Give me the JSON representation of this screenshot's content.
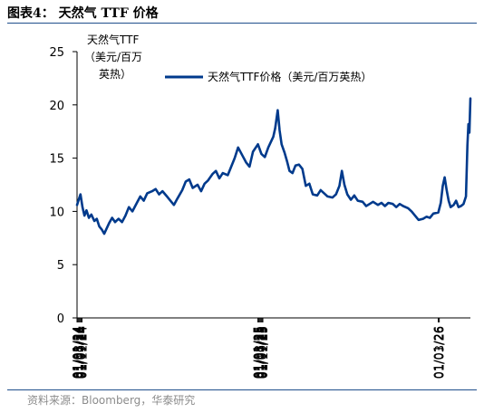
{
  "header": {
    "title": "图表4： 天然气 TTF 价格"
  },
  "footer": {
    "source": "资料来源：Bloomberg，华泰研究"
  },
  "colors": {
    "line": "#003a8c",
    "rule": "#1f4e8c",
    "source": "#8c8c8c"
  },
  "chart_data": {
    "type": "line",
    "title": "",
    "ylabel": "",
    "unit_label": [
      "天然气TTF",
      "（美元/百万",
      "英热）"
    ],
    "xlabel": "",
    "ylim": [
      0,
      25
    ],
    "yticks": [
      0,
      5,
      10,
      15,
      20,
      25
    ],
    "xticks": [
      "01/01/24",
      "01/03/24",
      "01/05/24",
      "01/07/24",
      "01/09/24",
      "01/11/24",
      "01/01/25",
      "01/03/25",
      "01/05/25",
      "01/07/25",
      "01/09/25",
      "01/11/25",
      "01/01/26",
      "01/03/26"
    ],
    "legend_position": "top-right",
    "grid": false,
    "series": [
      {
        "name": "天然气TTF价格（美元/百万英热）",
        "points": [
          [
            "2024-01-01",
            10.6
          ],
          [
            "2024-01-05",
            11.2
          ],
          [
            "2024-01-08",
            11.6
          ],
          [
            "2024-01-12",
            10.4
          ],
          [
            "2024-01-16",
            9.6
          ],
          [
            "2024-01-20",
            10.1
          ],
          [
            "2024-01-25",
            9.4
          ],
          [
            "2024-01-30",
            9.7
          ],
          [
            "2024-02-05",
            9.1
          ],
          [
            "2024-02-10",
            9.3
          ],
          [
            "2024-02-15",
            8.6
          ],
          [
            "2024-02-20",
            8.3
          ],
          [
            "2024-02-25",
            7.9
          ],
          [
            "2024-03-01",
            8.4
          ],
          [
            "2024-03-06",
            8.9
          ],
          [
            "2024-03-12",
            9.4
          ],
          [
            "2024-03-18",
            9.0
          ],
          [
            "2024-03-25",
            9.3
          ],
          [
            "2024-04-01",
            9.0
          ],
          [
            "2024-04-08",
            9.6
          ],
          [
            "2024-04-15",
            10.4
          ],
          [
            "2024-04-22",
            10.0
          ],
          [
            "2024-05-01",
            10.8
          ],
          [
            "2024-05-08",
            11.4
          ],
          [
            "2024-05-15",
            11.0
          ],
          [
            "2024-05-22",
            11.7
          ],
          [
            "2024-06-01",
            11.9
          ],
          [
            "2024-06-08",
            12.1
          ],
          [
            "2024-06-15",
            11.6
          ],
          [
            "2024-06-22",
            11.9
          ],
          [
            "2024-07-01",
            11.4
          ],
          [
            "2024-07-08",
            11.0
          ],
          [
            "2024-07-15",
            10.6
          ],
          [
            "2024-07-22",
            11.2
          ],
          [
            "2024-08-01",
            12.0
          ],
          [
            "2024-08-08",
            12.8
          ],
          [
            "2024-08-15",
            13.0
          ],
          [
            "2024-08-22",
            12.2
          ],
          [
            "2024-09-01",
            12.5
          ],
          [
            "2024-09-08",
            11.9
          ],
          [
            "2024-09-15",
            12.6
          ],
          [
            "2024-09-22",
            12.9
          ],
          [
            "2024-10-01",
            13.5
          ],
          [
            "2024-10-08",
            13.8
          ],
          [
            "2024-10-15",
            13.1
          ],
          [
            "2024-10-22",
            13.6
          ],
          [
            "2024-11-01",
            13.4
          ],
          [
            "2024-11-08",
            14.2
          ],
          [
            "2024-11-15",
            15.0
          ],
          [
            "2024-11-22",
            16.0
          ],
          [
            "2024-12-01",
            15.2
          ],
          [
            "2024-12-08",
            14.6
          ],
          [
            "2024-12-15",
            14.2
          ],
          [
            "2024-12-22",
            15.6
          ],
          [
            "2025-01-01",
            16.3
          ],
          [
            "2025-01-08",
            15.4
          ],
          [
            "2025-01-15",
            15.1
          ],
          [
            "2025-01-22",
            16.0
          ],
          [
            "2025-02-01",
            17.0
          ],
          [
            "2025-02-05",
            17.8
          ],
          [
            "2025-02-10",
            19.5
          ],
          [
            "2025-02-14",
            17.6
          ],
          [
            "2025-02-18",
            16.3
          ],
          [
            "2025-02-24",
            15.5
          ],
          [
            "2025-03-01",
            14.7
          ],
          [
            "2025-03-06",
            13.8
          ],
          [
            "2025-03-12",
            13.6
          ],
          [
            "2025-03-18",
            14.3
          ],
          [
            "2025-03-25",
            14.4
          ],
          [
            "2025-04-01",
            14.0
          ],
          [
            "2025-04-08",
            12.4
          ],
          [
            "2025-04-15",
            12.6
          ],
          [
            "2025-04-22",
            11.6
          ],
          [
            "2025-05-01",
            11.5
          ],
          [
            "2025-05-08",
            12.0
          ],
          [
            "2025-05-15",
            11.7
          ],
          [
            "2025-05-22",
            11.4
          ],
          [
            "2025-06-01",
            11.3
          ],
          [
            "2025-06-08",
            11.6
          ],
          [
            "2025-06-15",
            12.4
          ],
          [
            "2025-06-20",
            13.8
          ],
          [
            "2025-06-25",
            12.5
          ],
          [
            "2025-07-01",
            11.6
          ],
          [
            "2025-07-08",
            11.1
          ],
          [
            "2025-07-15",
            11.5
          ],
          [
            "2025-07-22",
            11.0
          ],
          [
            "2025-08-01",
            10.9
          ],
          [
            "2025-08-08",
            10.5
          ],
          [
            "2025-08-15",
            10.7
          ],
          [
            "2025-08-22",
            10.9
          ],
          [
            "2025-09-01",
            10.6
          ],
          [
            "2025-09-08",
            10.8
          ],
          [
            "2025-09-15",
            10.5
          ],
          [
            "2025-09-22",
            10.8
          ],
          [
            "2025-10-01",
            10.7
          ],
          [
            "2025-10-08",
            10.4
          ],
          [
            "2025-10-15",
            10.7
          ],
          [
            "2025-10-22",
            10.5
          ],
          [
            "2025-11-01",
            10.3
          ],
          [
            "2025-11-08",
            10.0
          ],
          [
            "2025-11-15",
            9.6
          ],
          [
            "2025-11-22",
            9.2
          ],
          [
            "2025-12-01",
            9.3
          ],
          [
            "2025-12-08",
            9.5
          ],
          [
            "2025-12-15",
            9.4
          ],
          [
            "2025-12-22",
            9.8
          ],
          [
            "2026-01-01",
            9.9
          ],
          [
            "2026-01-06",
            10.8
          ],
          [
            "2026-01-10",
            12.4
          ],
          [
            "2026-01-14",
            13.2
          ],
          [
            "2026-01-18",
            12.0
          ],
          [
            "2026-01-22",
            11.0
          ],
          [
            "2026-01-26",
            10.4
          ],
          [
            "2026-02-01",
            10.6
          ],
          [
            "2026-02-06",
            11.0
          ],
          [
            "2026-02-11",
            10.4
          ],
          [
            "2026-02-16",
            10.5
          ],
          [
            "2026-02-21",
            10.7
          ],
          [
            "2026-02-26",
            11.4
          ],
          [
            "2026-03-01",
            16.2
          ],
          [
            "2026-03-03",
            18.2
          ],
          [
            "2026-03-05",
            17.4
          ],
          [
            "2026-03-07",
            20.6
          ]
        ]
      }
    ]
  }
}
